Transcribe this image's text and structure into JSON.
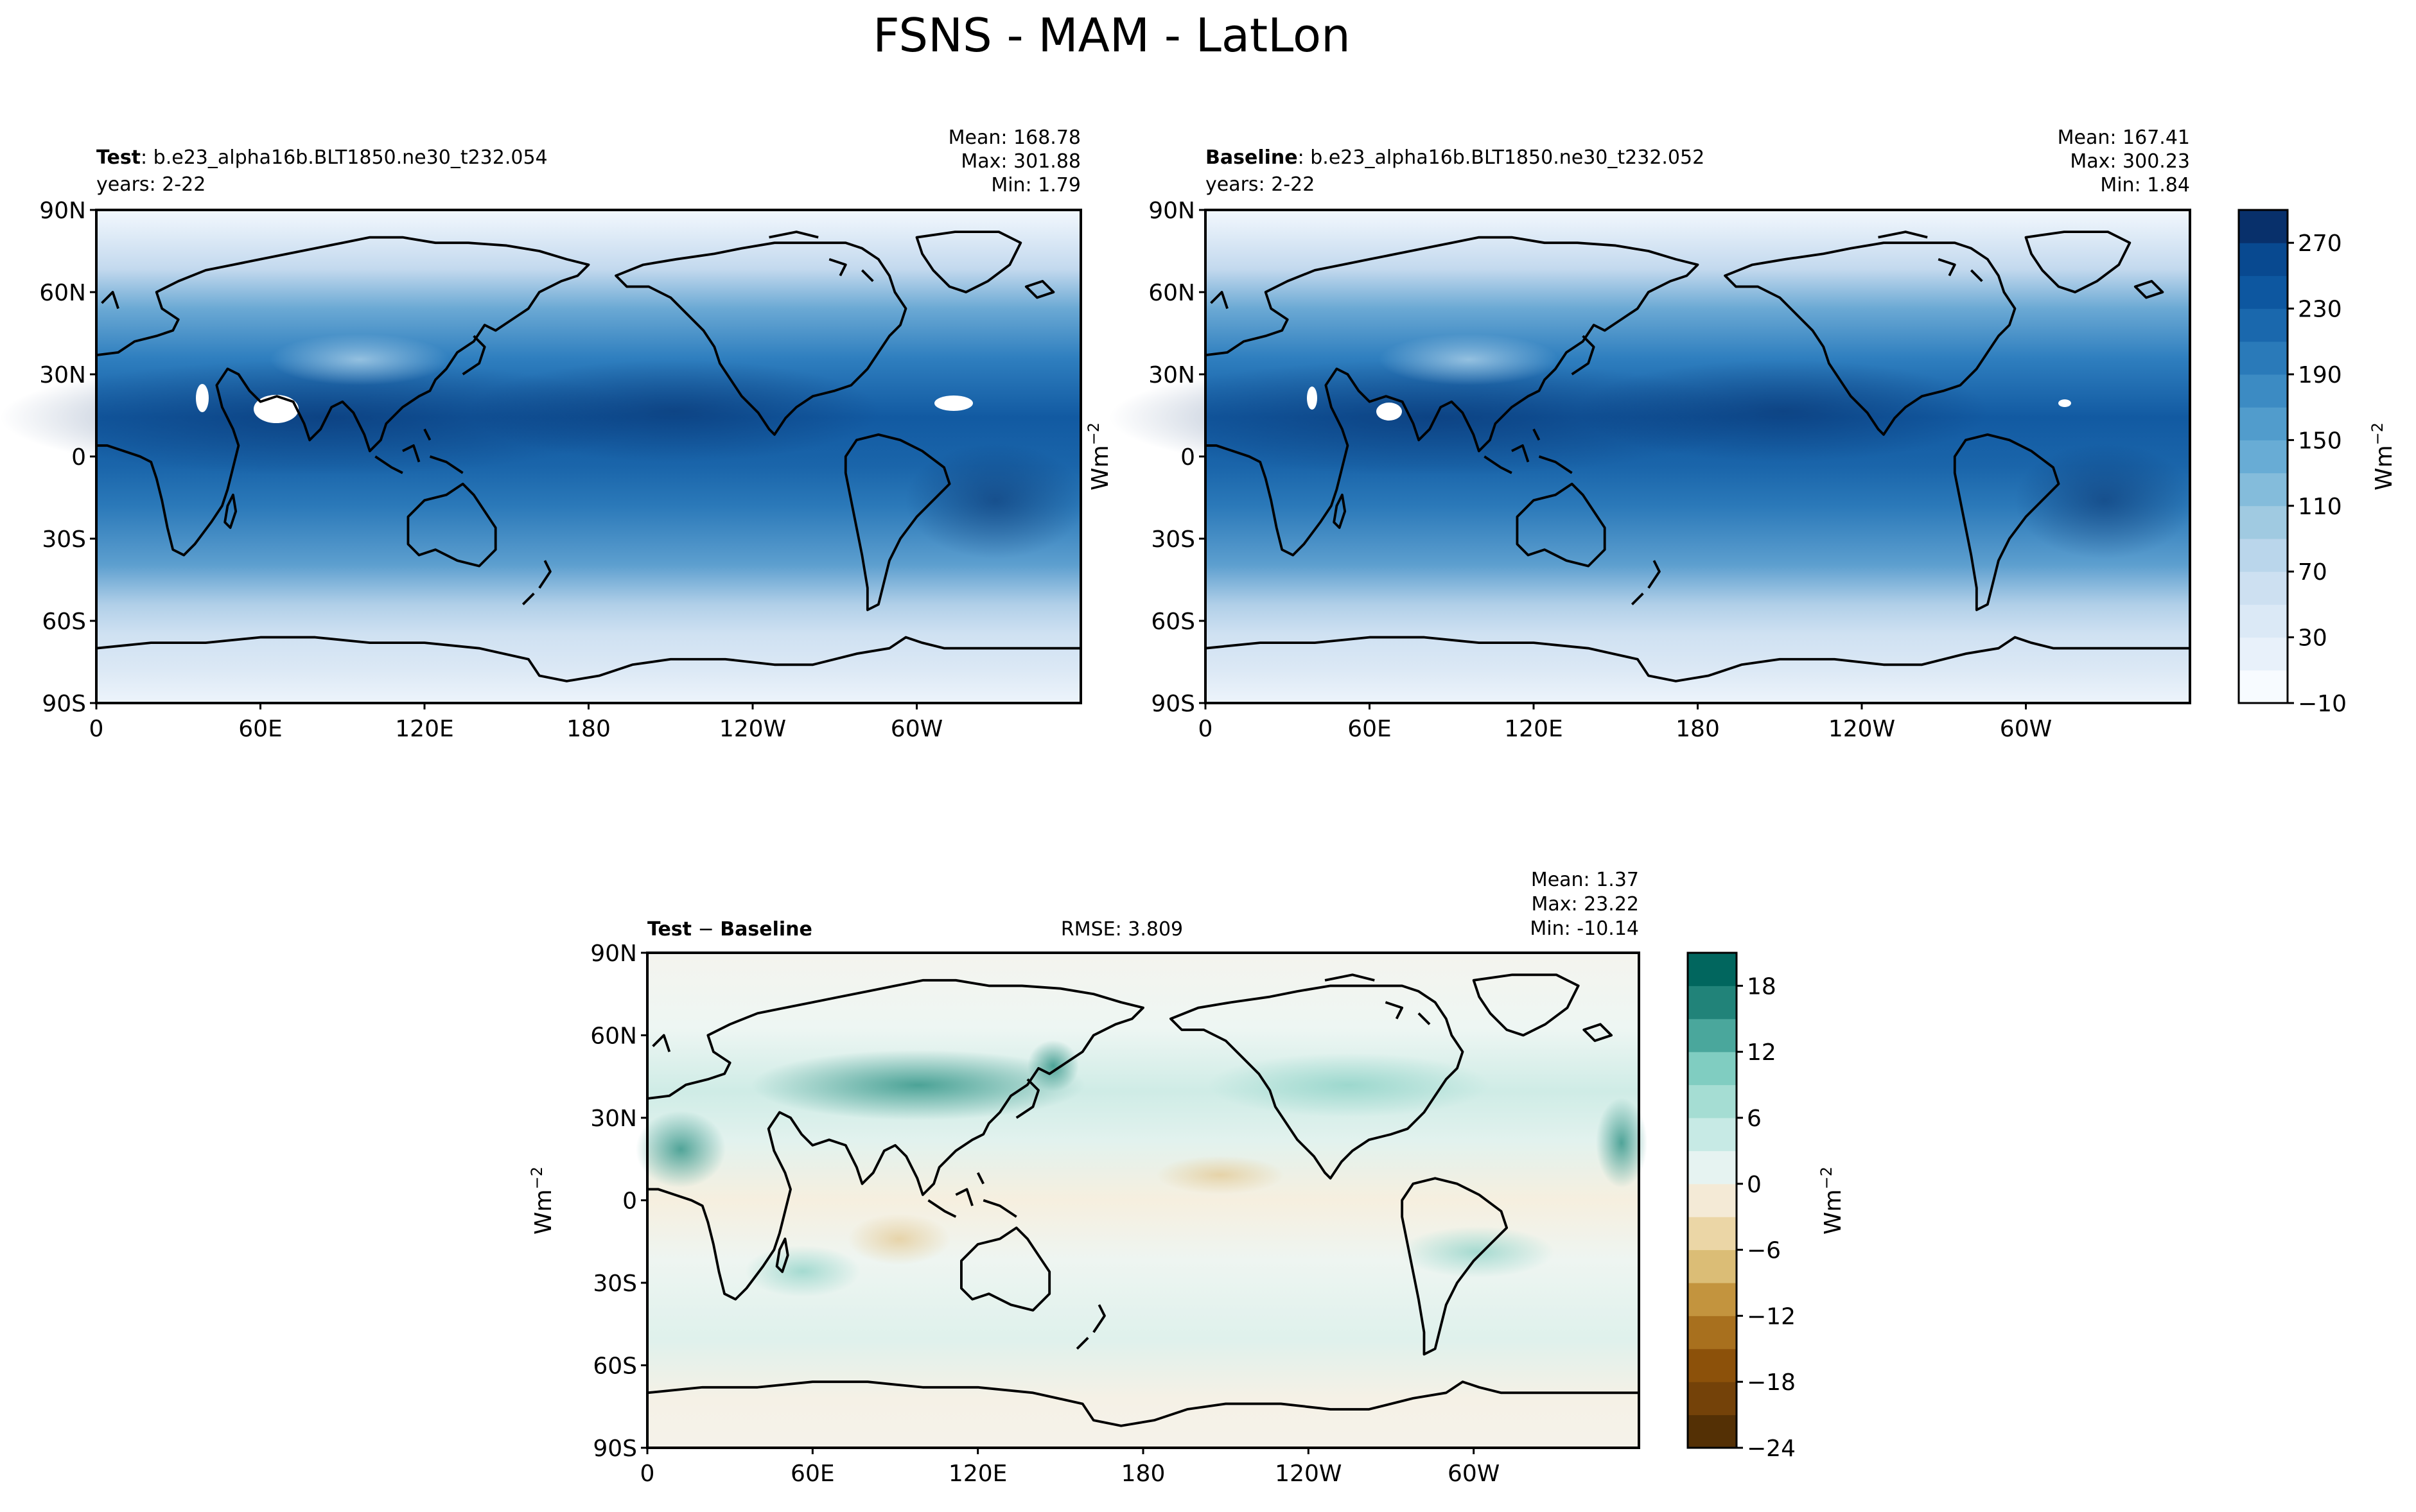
{
  "figure": {
    "title": "FSNS - MAM - LatLon"
  },
  "chart_data": [
    {
      "type": "heatmap",
      "panel": "test",
      "label_bold": "Test",
      "label_rest": ": b.e23_alpha16b.BLT1850.ne30_t232.054",
      "years": "years: 2-22",
      "stats": {
        "mean": "Mean: 168.78",
        "max": "Max: 301.88",
        "min": "Min:  1.79"
      },
      "xticks": [
        "0",
        "60E",
        "120E",
        "180",
        "120W",
        "60W"
      ],
      "yticks": [
        "90N",
        "60N",
        "30N",
        "0",
        "30S",
        "60S",
        "90S"
      ],
      "ylabel": "",
      "colormap": "Blues",
      "ylim": [
        -90,
        90
      ],
      "xlim": [
        0,
        360
      ]
    },
    {
      "type": "heatmap",
      "panel": "baseline",
      "label_bold": "Baseline",
      "label_rest": ": b.e23_alpha16b.BLT1850.ne30_t232.052",
      "years": "years: 2-22",
      "stats": {
        "mean": "Mean: 167.41",
        "max": "Max: 300.23",
        "min": "Min:  1.84"
      },
      "xticks": [
        "0",
        "60E",
        "120E",
        "180",
        "120W",
        "60W"
      ],
      "yticks": [
        "90N",
        "60N",
        "30N",
        "0",
        "30S",
        "60S",
        "90S"
      ],
      "ylabel": "Wm",
      "ylabel_sup": "−2",
      "colormap": "Blues",
      "ylim": [
        -90,
        90
      ],
      "xlim": [
        0,
        360
      ]
    },
    {
      "type": "heatmap",
      "panel": "difference",
      "label_bold_a": "Test",
      "label_mid": " − ",
      "label_bold_b": "Baseline",
      "rmse": "RMSE: 3.809",
      "stats": {
        "mean": "Mean:  1.37",
        "max": "Max: 23.22",
        "min": "Min: -10.14"
      },
      "xticks": [
        "0",
        "60E",
        "120E",
        "180",
        "120W",
        "60W"
      ],
      "yticks": [
        "90N",
        "60N",
        "30N",
        "0",
        "30S",
        "60S",
        "90S"
      ],
      "ylabel": "Wm",
      "ylabel_sup": "−2",
      "colormap": "BrBG",
      "ylim": [
        -90,
        90
      ],
      "xlim": [
        0,
        360
      ]
    }
  ],
  "colorbars": {
    "main": {
      "levels": [
        -10,
        10,
        30,
        50,
        70,
        90,
        110,
        130,
        150,
        170,
        190,
        210,
        230,
        250,
        270,
        290
      ],
      "tick_labels": [
        "−10",
        "30",
        "70",
        "110",
        "150",
        "190",
        "230",
        "270"
      ],
      "tick_values": [
        -10,
        30,
        70,
        110,
        150,
        190,
        230,
        270
      ],
      "label": "Wm",
      "label_sup": "−2",
      "colors": [
        "#f7fbff",
        "#e8f1fa",
        "#dbe9f6",
        "#cde0f1",
        "#bad6eb",
        "#a0cae1",
        "#84bcdb",
        "#68acd5",
        "#519ccc",
        "#3c8bc3",
        "#2a7ab9",
        "#1a68ad",
        "#0d57a0",
        "#084990",
        "#08306b"
      ]
    },
    "diff": {
      "levels": [
        -24,
        -21,
        -18,
        -15,
        -12,
        -9,
        -6,
        -3,
        0,
        3,
        6,
        9,
        12,
        15,
        18,
        21
      ],
      "tick_labels": [
        "−24",
        "−18",
        "−12",
        "−6",
        "0",
        "6",
        "12",
        "18"
      ],
      "tick_values": [
        -24,
        -18,
        -12,
        -6,
        0,
        6,
        12,
        18
      ],
      "label": "Wm",
      "label_sup": "−2",
      "colors": [
        "#543005",
        "#744209",
        "#8c510a",
        "#a8701e",
        "#c3943e",
        "#dbbd76",
        "#ebd6a6",
        "#f4ead6",
        "#e6f3f1",
        "#c7eae5",
        "#a5ddd3",
        "#80cdc1",
        "#4aa79c",
        "#218379",
        "#01665e"
      ]
    }
  },
  "colors": {
    "continent_outline": "#000000",
    "missing": "#ffffff"
  }
}
